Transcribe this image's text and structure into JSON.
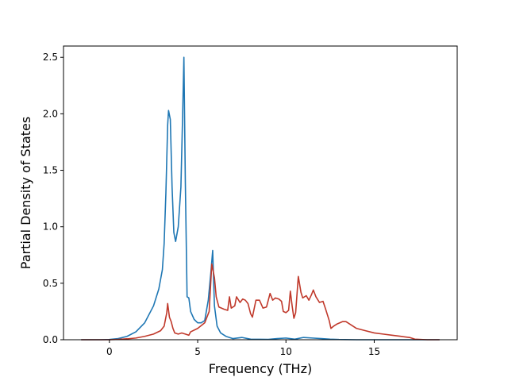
{
  "chart_data": {
    "type": "line",
    "title": "",
    "xlabel": "Frequency (THz)",
    "ylabel": "Partial Density of States",
    "xlim": [
      -2.6,
      19.7
    ],
    "ylim": [
      0,
      2.6
    ],
    "xticks": [
      0,
      5,
      10,
      15
    ],
    "yticks": [
      0.0,
      0.5,
      1.0,
      1.5,
      2.0,
      2.5
    ],
    "xtick_labels": [
      "0",
      "5",
      "10",
      "15"
    ],
    "ytick_labels": [
      "0.0",
      "0.5",
      "1.0",
      "1.5",
      "2.0",
      "2.5"
    ],
    "grid": false,
    "legend": false,
    "series": [
      {
        "color": "#1f77b4",
        "points": [
          [
            -1.6,
            0.0
          ],
          [
            -0.5,
            0.0
          ],
          [
            0.0,
            0.002
          ],
          [
            0.5,
            0.01
          ],
          [
            1.0,
            0.03
          ],
          [
            1.5,
            0.07
          ],
          [
            2.0,
            0.15
          ],
          [
            2.5,
            0.3
          ],
          [
            2.8,
            0.45
          ],
          [
            3.0,
            0.62
          ],
          [
            3.1,
            0.85
          ],
          [
            3.2,
            1.3
          ],
          [
            3.3,
            1.9
          ],
          [
            3.35,
            2.03
          ],
          [
            3.45,
            1.95
          ],
          [
            3.55,
            1.35
          ],
          [
            3.65,
            0.95
          ],
          [
            3.75,
            0.87
          ],
          [
            3.9,
            1.0
          ],
          [
            4.05,
            1.35
          ],
          [
            4.15,
            2.0
          ],
          [
            4.22,
            2.5
          ],
          [
            4.3,
            1.4
          ],
          [
            4.4,
            0.38
          ],
          [
            4.5,
            0.37
          ],
          [
            4.6,
            0.25
          ],
          [
            4.8,
            0.18
          ],
          [
            5.0,
            0.15
          ],
          [
            5.2,
            0.15
          ],
          [
            5.4,
            0.17
          ],
          [
            5.6,
            0.35
          ],
          [
            5.75,
            0.6
          ],
          [
            5.85,
            0.79
          ],
          [
            5.95,
            0.3
          ],
          [
            6.1,
            0.12
          ],
          [
            6.3,
            0.06
          ],
          [
            6.6,
            0.03
          ],
          [
            7.0,
            0.01
          ],
          [
            7.5,
            0.02
          ],
          [
            8.0,
            0.005
          ],
          [
            9.0,
            0.003
          ],
          [
            9.5,
            0.01
          ],
          [
            10.0,
            0.015
          ],
          [
            10.5,
            0.005
          ],
          [
            11.0,
            0.02
          ],
          [
            11.5,
            0.015
          ],
          [
            12.0,
            0.01
          ],
          [
            12.5,
            0.005
          ],
          [
            13.0,
            0.002
          ],
          [
            14.0,
            0.0
          ],
          [
            16.0,
            0.0
          ],
          [
            18.7,
            0.0
          ]
        ]
      },
      {
        "color": "#c0392b",
        "points": [
          [
            -1.6,
            0.0
          ],
          [
            0.0,
            0.0
          ],
          [
            0.5,
            0.003
          ],
          [
            1.0,
            0.008
          ],
          [
            1.5,
            0.015
          ],
          [
            2.0,
            0.03
          ],
          [
            2.5,
            0.05
          ],
          [
            2.9,
            0.08
          ],
          [
            3.1,
            0.12
          ],
          [
            3.25,
            0.24
          ],
          [
            3.3,
            0.32
          ],
          [
            3.4,
            0.2
          ],
          [
            3.5,
            0.16
          ],
          [
            3.6,
            0.1
          ],
          [
            3.7,
            0.06
          ],
          [
            3.9,
            0.05
          ],
          [
            4.1,
            0.06
          ],
          [
            4.3,
            0.05
          ],
          [
            4.5,
            0.04
          ],
          [
            4.6,
            0.07
          ],
          [
            5.0,
            0.1
          ],
          [
            5.4,
            0.15
          ],
          [
            5.65,
            0.25
          ],
          [
            5.8,
            0.67
          ],
          [
            5.95,
            0.55
          ],
          [
            6.05,
            0.38
          ],
          [
            6.2,
            0.29
          ],
          [
            6.5,
            0.27
          ],
          [
            6.7,
            0.26
          ],
          [
            6.8,
            0.38
          ],
          [
            6.9,
            0.28
          ],
          [
            7.1,
            0.3
          ],
          [
            7.2,
            0.38
          ],
          [
            7.4,
            0.33
          ],
          [
            7.55,
            0.36
          ],
          [
            7.7,
            0.35
          ],
          [
            7.85,
            0.32
          ],
          [
            8.0,
            0.23
          ],
          [
            8.1,
            0.2
          ],
          [
            8.3,
            0.35
          ],
          [
            8.5,
            0.35
          ],
          [
            8.7,
            0.28
          ],
          [
            8.9,
            0.29
          ],
          [
            9.1,
            0.41
          ],
          [
            9.25,
            0.35
          ],
          [
            9.4,
            0.37
          ],
          [
            9.6,
            0.36
          ],
          [
            9.75,
            0.34
          ],
          [
            9.85,
            0.25
          ],
          [
            10.0,
            0.24
          ],
          [
            10.15,
            0.26
          ],
          [
            10.25,
            0.43
          ],
          [
            10.35,
            0.3
          ],
          [
            10.45,
            0.19
          ],
          [
            10.55,
            0.24
          ],
          [
            10.7,
            0.56
          ],
          [
            10.85,
            0.42
          ],
          [
            10.95,
            0.37
          ],
          [
            11.15,
            0.39
          ],
          [
            11.3,
            0.35
          ],
          [
            11.45,
            0.4
          ],
          [
            11.55,
            0.44
          ],
          [
            11.7,
            0.38
          ],
          [
            11.9,
            0.33
          ],
          [
            12.1,
            0.34
          ],
          [
            12.25,
            0.27
          ],
          [
            12.45,
            0.17
          ],
          [
            12.55,
            0.1
          ],
          [
            12.7,
            0.12
          ],
          [
            12.9,
            0.14
          ],
          [
            13.2,
            0.16
          ],
          [
            13.4,
            0.16
          ],
          [
            13.6,
            0.14
          ],
          [
            14.0,
            0.1
          ],
          [
            14.5,
            0.08
          ],
          [
            15.0,
            0.06
          ],
          [
            15.5,
            0.05
          ],
          [
            16.0,
            0.04
          ],
          [
            16.5,
            0.03
          ],
          [
            17.0,
            0.02
          ],
          [
            17.3,
            0.005
          ],
          [
            18.0,
            0.0
          ],
          [
            18.7,
            0.0
          ]
        ]
      }
    ]
  }
}
